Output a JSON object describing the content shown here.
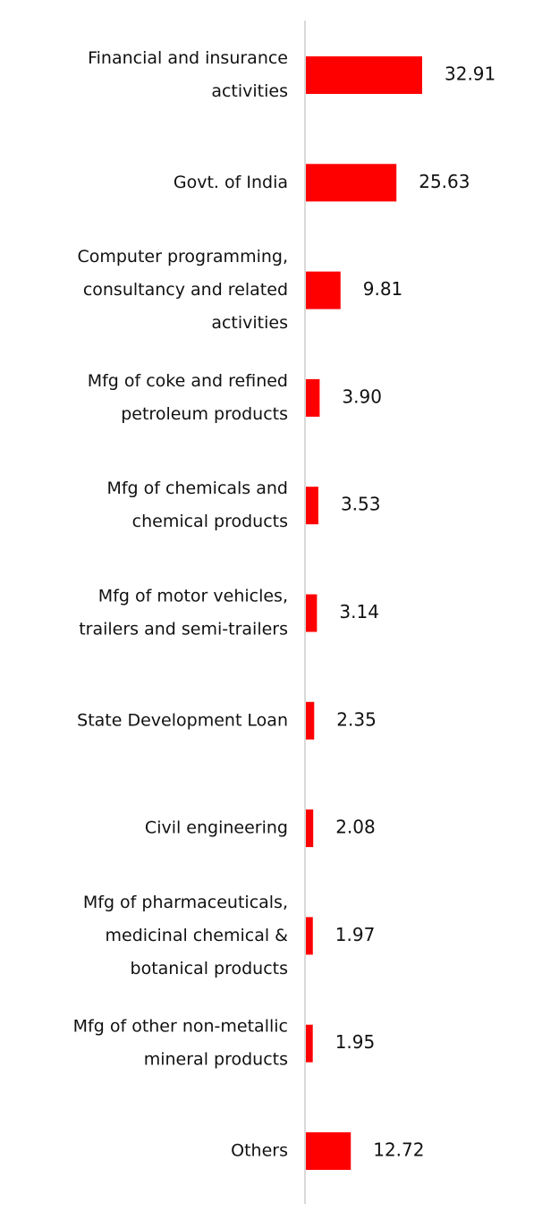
{
  "chart_data": {
    "type": "bar",
    "orientation": "horizontal",
    "bar_color": "#ff0000",
    "axis_color": "#d9d9d9",
    "grid": false,
    "title": "",
    "xlabel": "",
    "ylabel": "",
    "xlim": [
      0,
      32.91
    ],
    "categories": [
      [
        "Financial and insurance",
        "activities"
      ],
      [
        "Govt. of India"
      ],
      [
        "Computer programming,",
        "consultancy and related",
        "activities"
      ],
      [
        "Mfg of coke and refined",
        "petroleum products"
      ],
      [
        "Mfg of chemicals and",
        "chemical products"
      ],
      [
        "Mfg of motor vehicles,",
        "trailers and semi-trailers"
      ],
      [
        "State Development Loan"
      ],
      [
        "Civil engineering"
      ],
      [
        "Mfg of pharmaceuticals,",
        "medicinal chemical &",
        "botanical products"
      ],
      [
        "Mfg of other non-metallic",
        "mineral products"
      ],
      [
        "Others"
      ]
    ],
    "values": [
      32.91,
      25.63,
      9.81,
      3.9,
      3.53,
      3.14,
      2.35,
      2.08,
      1.97,
      1.95,
      12.72
    ],
    "value_labels": [
      "32.91",
      "25.63",
      "9.81",
      "3.90",
      "3.53",
      "3.14",
      "2.35",
      "2.08",
      "1.97",
      "1.95",
      "12.72"
    ]
  }
}
